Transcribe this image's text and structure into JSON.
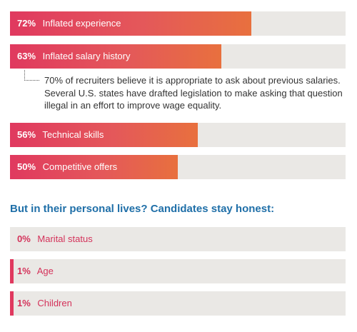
{
  "chart_data": [
    {
      "type": "bar",
      "orientation": "horizontal",
      "categories": [
        "Inflated experience",
        "Inflated salary history",
        "Technical skills",
        "Competitive offers"
      ],
      "values": [
        72,
        63,
        56,
        50
      ],
      "value_labels": [
        "72%",
        "63%",
        "56%",
        "50%"
      ],
      "xlim": [
        0,
        100
      ],
      "colors": {
        "fill_start": "#e0395f",
        "fill_end": "#e8703e",
        "track": "#eae8e5"
      },
      "annotation": {
        "category": "Inflated salary history",
        "text": "70% of recruiters believe it is appropriate to ask about previous salaries. Several U.S. states have drafted legislation to make asking that question illegal in an effort to improve wage equality."
      }
    },
    {
      "type": "bar",
      "orientation": "horizontal",
      "title": "But in their personal lives? Candidates stay honest:",
      "categories": [
        "Marital status",
        "Age",
        "Children"
      ],
      "values": [
        0,
        1,
        1
      ],
      "value_labels": [
        "0%",
        "1%",
        "1%"
      ],
      "xlim": [
        0,
        100
      ],
      "colors": {
        "fill": "#e0395f",
        "track": "#eae8e5",
        "label": "#d4325a",
        "title": "#1f6fa8"
      }
    }
  ]
}
